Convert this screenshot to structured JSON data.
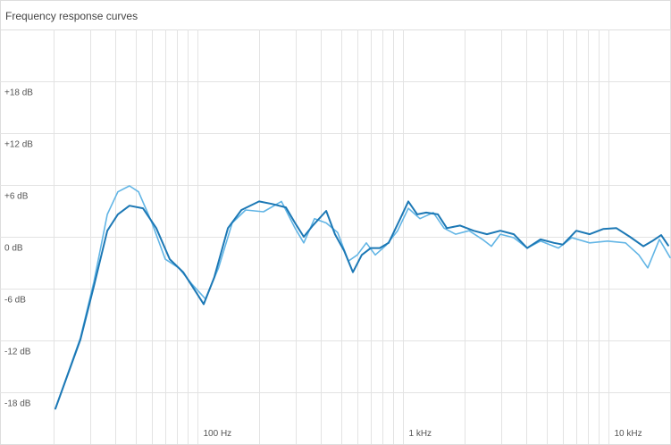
{
  "chart_data": {
    "type": "line",
    "title": "Frequency response curves",
    "xlog": true,
    "grid": true,
    "xlim": [
      20,
      20000
    ],
    "ylim": [
      -24,
      24
    ],
    "xticks": [
      {
        "value": 100,
        "label": "100 Hz"
      },
      {
        "value": 1000,
        "label": "1 kHz"
      },
      {
        "value": 10000,
        "label": "10 kHz"
      }
    ],
    "xminor": [
      20,
      30,
      40,
      50,
      60,
      70,
      80,
      90,
      200,
      300,
      400,
      500,
      600,
      700,
      800,
      900,
      2000,
      3000,
      4000,
      5000,
      6000,
      7000,
      8000,
      9000,
      20000
    ],
    "yticks": [
      {
        "value": 18,
        "label": "+18 dB"
      },
      {
        "value": 12,
        "label": "+12 dB"
      },
      {
        "value": 6,
        "label": "+6 dB"
      },
      {
        "value": 0,
        "label": "0 dB"
      },
      {
        "value": -6,
        "label": "-6 dB"
      },
      {
        "value": -12,
        "label": "-12 dB"
      },
      {
        "value": -18,
        "label": "-18 dB"
      }
    ],
    "series": [
      {
        "color": "#62b5e5",
        "x": [
          20.4,
          27,
          31.4,
          36.5,
          41.1,
          46.8,
          51.8,
          60.2,
          69.9,
          81.3,
          94.4,
          109.7,
          127,
          148,
          172,
          210,
          257,
          299,
          330,
          372,
          424,
          482,
          544,
          601,
          665,
          735,
          828,
          944,
          1064,
          1212,
          1409,
          1588,
          1808,
          2102,
          2444,
          2700,
          2986,
          3470,
          4030,
          4684,
          5720,
          6648,
          8120,
          9928,
          12130,
          14090,
          15570,
          17740,
          20000
        ],
        "values": [
          -19.9,
          -11.7,
          -5.2,
          2.6,
          5.2,
          5.9,
          5.2,
          1.6,
          -2.6,
          -3.6,
          -5.5,
          -7.2,
          -3.6,
          1.6,
          3.1,
          2.9,
          4.1,
          1.0,
          -0.7,
          2.1,
          1.6,
          0.5,
          -2.8,
          -2.1,
          -0.7,
          -2.1,
          -1.0,
          0.7,
          3.3,
          2.1,
          2.8,
          1.0,
          0.3,
          0.7,
          -0.3,
          -1.1,
          0.3,
          -0.1,
          -1.3,
          -0.5,
          -1.3,
          -0.1,
          -0.7,
          -0.5,
          -0.7,
          -2.1,
          -3.6,
          -0.3,
          -2.4
        ]
      },
      {
        "color": "#1c78b5",
        "x": [
          20.4,
          27,
          31.4,
          36.5,
          41.1,
          46.8,
          54.4,
          63.2,
          73.5,
          85.4,
          94.4,
          107.5,
          121,
          141,
          164,
          200,
          232,
          270,
          299,
          330,
          365,
          424,
          468,
          518,
          572,
          632,
          699,
          773,
          854,
          973,
          1064,
          1177,
          1300,
          1482,
          1638,
          1902,
          2210,
          2570,
          2986,
          3470,
          4030,
          4684,
          5440,
          6016,
          6992,
          8120,
          9440,
          10960,
          12740,
          14810,
          16370,
          18090,
          19590
        ],
        "values": [
          -19.9,
          -11.9,
          -5.7,
          0.7,
          2.6,
          3.6,
          3.3,
          1.0,
          -2.6,
          -4.1,
          -5.7,
          -7.8,
          -4.7,
          1.0,
          3.1,
          4.1,
          3.8,
          3.4,
          1.6,
          0,
          1.3,
          3.0,
          0.3,
          -1.6,
          -4.1,
          -2.1,
          -1.3,
          -1.3,
          -0.7,
          2.1,
          4.1,
          2.6,
          2.8,
          2.6,
          1.0,
          1.3,
          0.7,
          0.3,
          0.7,
          0.3,
          -1.3,
          -0.3,
          -0.7,
          -0.9,
          0.7,
          0.3,
          0.9,
          1.0,
          0,
          -1.1,
          -0.5,
          0.2,
          -1.0
        ]
      }
    ]
  }
}
